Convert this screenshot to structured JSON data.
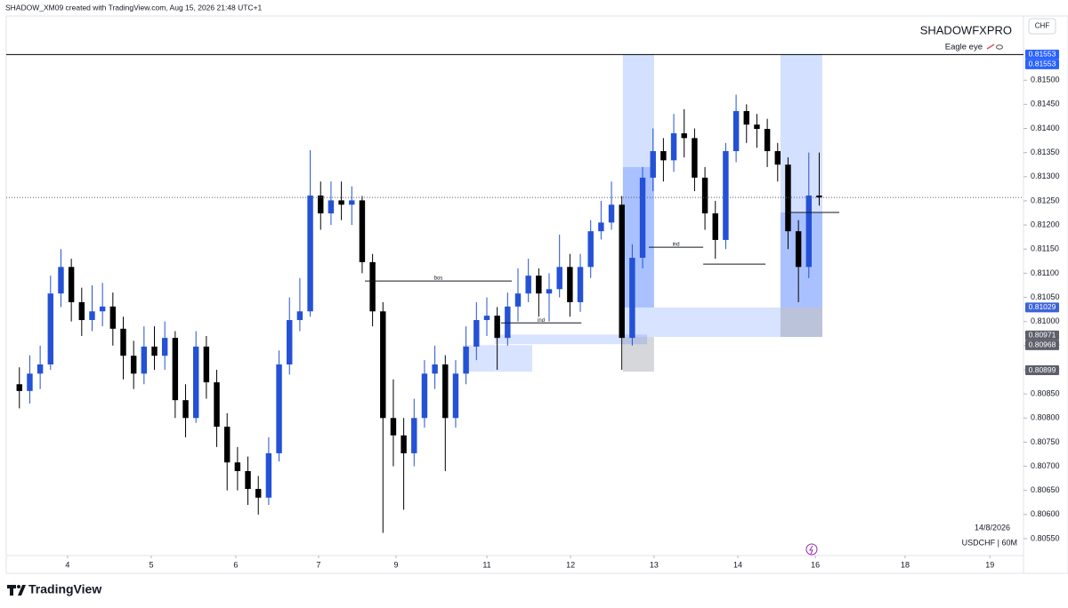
{
  "header": "SHADOW_XM09 created with TradingView.com, Aug 15, 2026 21:48 UTC+1",
  "brand": "TradingView",
  "chart_data": {
    "type": "candlestick",
    "title": "SHADOWFXPRO",
    "indicator": "Eagle eye",
    "currency": "CHF",
    "date_note": "14/8/2026",
    "symbol": "USDCHF | 60M",
    "up_color": "#2451d6",
    "down_color": "#000000",
    "xlim": [
      -1.8,
      292
    ],
    "ylim": [
      0.80515,
      0.81633
    ],
    "xticks": [
      {
        "value": 15.9,
        "label": "4"
      },
      {
        "value": 40.1,
        "label": "5"
      },
      {
        "value": 64.5,
        "label": "6"
      },
      {
        "value": 88.4,
        "label": "7"
      },
      {
        "value": 110.8,
        "label": "9"
      },
      {
        "value": 137.0,
        "label": "11"
      },
      {
        "value": 161.2,
        "label": "12"
      },
      {
        "value": 185.3,
        "label": "13"
      },
      {
        "value": 209.5,
        "label": "14"
      },
      {
        "value": 231.9,
        "label": "16"
      },
      {
        "value": 257.8,
        "label": "18"
      },
      {
        "value": 282.3,
        "label": "19"
      }
    ],
    "yticks": [
      {
        "value": 0.815,
        "label": "0.81500"
      },
      {
        "value": 0.8145,
        "label": "0.81450"
      },
      {
        "value": 0.814,
        "label": "0.81400"
      },
      {
        "value": 0.8135,
        "label": "0.81350"
      },
      {
        "value": 0.813,
        "label": "0.81300"
      },
      {
        "value": 0.8125,
        "label": "0.81250"
      },
      {
        "value": 0.812,
        "label": "0.81200"
      },
      {
        "value": 0.8115,
        "label": "0.81150"
      },
      {
        "value": 0.811,
        "label": "0.81100"
      },
      {
        "value": 0.8105,
        "label": "0.81050"
      },
      {
        "value": 0.81,
        "label": "0.81000"
      },
      {
        "value": 0.8095,
        "label": "0.80950"
      },
      {
        "value": 0.809,
        "label": "0.80900"
      },
      {
        "value": 0.8085,
        "label": "0.80850"
      },
      {
        "value": 0.808,
        "label": "0.80800"
      },
      {
        "value": 0.8075,
        "label": "0.80750"
      },
      {
        "value": 0.807,
        "label": "0.80700"
      },
      {
        "value": 0.8065,
        "label": "0.80650"
      },
      {
        "value": 0.806,
        "label": "0.80600"
      },
      {
        "value": 0.8055,
        "label": "0.80550"
      }
    ],
    "price_labels": [
      {
        "value": 0.81553,
        "color": "#2962ff"
      },
      {
        "value": 0.81553,
        "color": "#2962ff"
      },
      {
        "value": 0.81029,
        "color": "#3d63d8"
      },
      {
        "value": 0.80971,
        "color": "#5d606b"
      },
      {
        "value": 0.80968,
        "color": "#5d606b"
      },
      {
        "value": 0.80899,
        "color": "#5d606b"
      }
    ],
    "horizontal_line": {
      "value": 0.81553,
      "color": "#000000"
    },
    "zones": [
      {
        "x": [
          176.3,
          185.3
        ],
        "y": [
          0.81029,
          0.81553
        ],
        "color": "rgba(41,98,255,0.2)"
      },
      {
        "x": [
          176.3,
          185.3
        ],
        "y": [
          0.81029,
          0.8132
        ],
        "color": "rgba(41,98,255,0.25)"
      },
      {
        "x": [
          221.8,
          233.9
        ],
        "y": [
          0.81029,
          0.81553
        ],
        "color": "rgba(41,98,255,0.2)"
      },
      {
        "x": [
          221.8,
          233.9
        ],
        "y": [
          0.81029,
          0.81226
        ],
        "color": "rgba(41,98,255,0.25)"
      },
      {
        "x": [
          176.3,
          233.9
        ],
        "y": [
          0.80968,
          0.81029
        ],
        "color": "rgba(41,98,255,0.18)"
      },
      {
        "x": [
          176.3,
          185.3
        ],
        "y": [
          0.80896,
          0.80968
        ],
        "color": "rgba(120,123,134,0.3)"
      },
      {
        "x": [
          221.8,
          233.9
        ],
        "y": [
          0.80968,
          0.81029
        ],
        "color": "rgba(120,123,134,0.3)"
      },
      {
        "x": [
          139.3,
          183.3
        ],
        "y": [
          0.80953,
          0.80973
        ],
        "color": "rgba(41,98,255,0.18)"
      },
      {
        "x": [
          130.1,
          150.1
        ],
        "y": [
          0.80896,
          0.80951
        ],
        "color": "rgba(41,98,255,0.18)"
      }
    ],
    "levels": [
      {
        "x": [
          101.8,
          144.2
        ],
        "y": 0.81084,
        "label": "bos"
      },
      {
        "x": [
          141.1,
          164.3
        ],
        "y": 0.80997,
        "label": "ind"
      },
      {
        "x": [
          183.8,
          199.5
        ],
        "y": 0.81154,
        "label": "ind"
      },
      {
        "x": [
          199.5,
          217.5
        ],
        "y": 0.81119
      },
      {
        "x": [
          223.7,
          238.8
        ],
        "y": 0.81226
      }
    ],
    "x": [
      2,
      5,
      8,
      11,
      14,
      17,
      20,
      23,
      26,
      29,
      32,
      35,
      38,
      41,
      44,
      47,
      50,
      53,
      56,
      59,
      62,
      65,
      68,
      71,
      74,
      77,
      80,
      83,
      86,
      89,
      92,
      95,
      98,
      101,
      104,
      107,
      110,
      113,
      116,
      119,
      122,
      125,
      128,
      131,
      134,
      137,
      140,
      143,
      146,
      149,
      152,
      155,
      158,
      161,
      164,
      167,
      170,
      173,
      176,
      179,
      182,
      185,
      188,
      191,
      194,
      197,
      200,
      203,
      206,
      209,
      212,
      215,
      218,
      221,
      224,
      227,
      230,
      233
    ],
    "open": [
      0.8087,
      0.80856,
      0.80892,
      0.80911,
      0.81058,
      0.81113,
      0.8104,
      0.81003,
      0.81021,
      0.81031,
      0.80985,
      0.80929,
      0.80892,
      0.80948,
      0.80929,
      0.80966,
      0.80837,
      0.808,
      0.80948,
      0.80874,
      0.80782,
      0.80708,
      0.8069,
      0.80653,
      0.80635,
      0.80727,
      0.80911,
      0.81003,
      0.81021,
      0.81261,
      0.81224,
      0.81251,
      0.81242,
      0.81251,
      0.81123,
      0.81021,
      0.808,
      0.80764,
      0.80727,
      0.808,
      0.80892,
      0.80911,
      0.808,
      0.80892,
      0.80948,
      0.81003,
      0.81012,
      0.80966,
      0.81031,
      0.81058,
      0.81095,
      0.81058,
      0.81067,
      0.81113,
      0.8104,
      0.81113,
      0.81187,
      0.81205,
      0.81242,
      0.80966,
      0.81132,
      0.81298,
      0.81353,
      0.81334,
      0.8139,
      0.8138,
      0.81298,
      0.81224,
      0.81169,
      0.81353,
      0.81436,
      0.81408,
      0.81399,
      0.81353,
      0.81325,
      0.81187,
      0.81113,
      0.81261
    ],
    "high": [
      0.80905,
      0.8093,
      0.8095,
      0.81095,
      0.8115,
      0.8113,
      0.8107,
      0.81075,
      0.8108,
      0.8106,
      0.8101,
      0.8096,
      0.8099,
      0.8099,
      0.81,
      0.8098,
      0.8087,
      0.8098,
      0.8097,
      0.809,
      0.8081,
      0.8074,
      0.8072,
      0.8068,
      0.8076,
      0.8094,
      0.8105,
      0.8109,
      0.81355,
      0.8129,
      0.8129,
      0.8129,
      0.8128,
      0.8126,
      0.8114,
      0.8104,
      0.8088,
      0.808,
      0.8084,
      0.8092,
      0.8095,
      0.8093,
      0.8092,
      0.8099,
      0.8104,
      0.8105,
      0.8103,
      0.8106,
      0.8111,
      0.8113,
      0.8111,
      0.811,
      0.8118,
      0.8114,
      0.8114,
      0.8121,
      0.8125,
      0.8129,
      0.8126,
      0.8116,
      0.8132,
      0.814,
      0.8138,
      0.8143,
      0.8144,
      0.814,
      0.8132,
      0.8125,
      0.8137,
      0.8147,
      0.8145,
      0.8143,
      0.8142,
      0.8137,
      0.8134,
      0.8121,
      0.8135,
      0.8135
    ],
    "low": [
      0.8082,
      0.8083,
      0.8086,
      0.809,
      0.8103,
      0.81,
      0.8097,
      0.8098,
      0.8099,
      0.8095,
      0.8088,
      0.8086,
      0.8087,
      0.809,
      0.809,
      0.808,
      0.8076,
      0.8079,
      0.8084,
      0.8074,
      0.8065,
      0.8065,
      0.8062,
      0.806,
      0.8062,
      0.8071,
      0.8089,
      0.8098,
      0.8101,
      0.8119,
      0.812,
      0.8121,
      0.812,
      0.811,
      0.8099,
      0.80562,
      0.807,
      0.8061,
      0.807,
      0.8078,
      0.8086,
      0.8069,
      0.8078,
      0.8087,
      0.8092,
      0.8097,
      0.809,
      0.8095,
      0.81,
      0.8104,
      0.8101,
      0.81,
      0.8105,
      0.8101,
      0.8102,
      0.8109,
      0.8117,
      0.8119,
      0.809,
      0.8095,
      0.8111,
      0.8127,
      0.8129,
      0.8131,
      0.8134,
      0.8127,
      0.8119,
      0.8113,
      0.8115,
      0.8133,
      0.8137,
      0.8136,
      0.8132,
      0.8129,
      0.8115,
      0.8104,
      0.8109,
      0.8124
    ],
    "close": [
      0.80856,
      0.80892,
      0.80911,
      0.81058,
      0.81113,
      0.8104,
      0.81003,
      0.81021,
      0.81031,
      0.80985,
      0.80929,
      0.80892,
      0.80948,
      0.80929,
      0.80966,
      0.80837,
      0.808,
      0.80948,
      0.80874,
      0.80782,
      0.80708,
      0.8069,
      0.80653,
      0.80635,
      0.80727,
      0.80911,
      0.81003,
      0.81021,
      0.81261,
      0.81224,
      0.81251,
      0.81242,
      0.81251,
      0.81123,
      0.81021,
      0.808,
      0.80764,
      0.80727,
      0.808,
      0.80892,
      0.80911,
      0.808,
      0.80892,
      0.80948,
      0.81003,
      0.81012,
      0.80966,
      0.81031,
      0.81058,
      0.81095,
      0.81058,
      0.81067,
      0.81113,
      0.8104,
      0.81113,
      0.81187,
      0.81205,
      0.81242,
      0.80966,
      0.81132,
      0.81298,
      0.81353,
      0.81334,
      0.8139,
      0.8138,
      0.81298,
      0.81224,
      0.81169,
      0.81353,
      0.81436,
      0.81408,
      0.81399,
      0.81353,
      0.81325,
      0.81187,
      0.81113,
      0.81261,
      0.81257
    ]
  }
}
